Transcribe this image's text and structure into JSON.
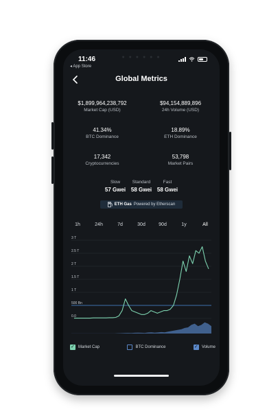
{
  "status": {
    "time": "11:46",
    "back_label": "◂ App Store"
  },
  "header": {
    "title": "Global Metrics"
  },
  "metrics": [
    {
      "value": "$1,899,964,238,792",
      "label": "Market Cap (USD)"
    },
    {
      "value": "$94,154,889,896",
      "label": "24h Volume (USD)"
    },
    {
      "value": "41.34%",
      "label": "BTC Dominance"
    },
    {
      "value": "18.89%",
      "label": "ETH Dominance"
    },
    {
      "value": "17,342",
      "label": "Cryptocurrencies"
    },
    {
      "value": "53,798",
      "label": "Market Pairs"
    }
  ],
  "gas": [
    {
      "label": "Slow",
      "value": "57 Gwei"
    },
    {
      "label": "Standard",
      "value": "58 Gwei"
    },
    {
      "label": "Fast",
      "value": "58 Gwei"
    }
  ],
  "eth_gas": {
    "label": "ETH Gas",
    "powered": "Powered by Etherscan"
  },
  "ranges": [
    "1h",
    "24h",
    "7d",
    "30d",
    "90d",
    "1y",
    "All"
  ],
  "selected_range": "All",
  "chart_data": {
    "type": "line",
    "yticks": [
      "3 T",
      "2.5 T",
      "2 T",
      "1.5 T",
      "1 T",
      "500 Bn",
      "0.0"
    ],
    "ylim": [
      0,
      3
    ],
    "series": [
      {
        "name": "Market Cap",
        "color": "#7dd3b0",
        "values": [
          0.01,
          0.01,
          0.01,
          0.01,
          0.01,
          0.01,
          0.02,
          0.02,
          0.02,
          0.02,
          0.02,
          0.03,
          0.03,
          0.04,
          0.1,
          0.3,
          0.75,
          0.5,
          0.3,
          0.25,
          0.2,
          0.15,
          0.15,
          0.2,
          0.3,
          0.25,
          0.2,
          0.25,
          0.3,
          0.3,
          0.35,
          0.5,
          0.9,
          1.5,
          2.2,
          1.8,
          2.4,
          2.1,
          2.6,
          2.5,
          2.75,
          2.2,
          1.9
        ]
      }
    ],
    "volume": {
      "name": "Volume",
      "color": "#4f78b3",
      "values": [
        0.01,
        0.01,
        0.01,
        0.01,
        0.01,
        0.01,
        0.01,
        0.01,
        0.01,
        0.01,
        0.01,
        0.01,
        0.01,
        0.01,
        0.02,
        0.03,
        0.04,
        0.05,
        0.04,
        0.06,
        0.07,
        0.06,
        0.05,
        0.08,
        0.1,
        0.07,
        0.09,
        0.12,
        0.1,
        0.15,
        0.2,
        0.25,
        0.3,
        0.35,
        0.45,
        0.5,
        0.7,
        0.8,
        0.6,
        0.7,
        0.9,
        0.8,
        0.6
      ]
    }
  },
  "legend": [
    {
      "label": "Market Cap",
      "checked": true,
      "color": "#7dd3b0"
    },
    {
      "label": "BTC Dominance",
      "checked": false,
      "color": "#5b88c9"
    },
    {
      "label": "Volume",
      "checked": true,
      "color": "#5b88c9"
    }
  ],
  "colors": {
    "background": "#15181c",
    "accent": "#7dd3b0",
    "muted": "#b9bec4"
  }
}
